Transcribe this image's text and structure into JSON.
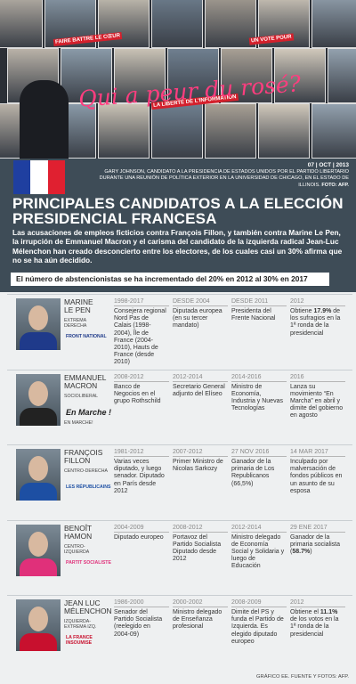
{
  "photo": {
    "graffiti": "Qui a peur du rosé?",
    "posters": [
      "FAIRE BATTRE LE CŒUR",
      "LA LIBERTÉ DE L'INFORMATION",
      "UN VOTE POUR"
    ]
  },
  "caption": {
    "date": "07 | OCT | 2013",
    "text": "GARY JOHNSON, CANDIDATO A LA PRESIDENCIA DE ESTADOS UNIDOS POR EL PARTIDO LIBERTARIO DURANTE UNA REUNIÓN DE POLÍTICA EXTERIOR EN LA UNIVERSIDAD DE CHICAGO, EN EL ESTADO DE ILLINOIS.",
    "credit": "FOTO: AFP."
  },
  "title": "PRINCIPALES CANDIDATOS A LA ELECCIÓN PRESIDENCIAL FRANCESA",
  "intro": "Las acusaciones de empleos ficticios contra François Fillon, y también contra Marine Le Pen, la irrupción de Emmanuel Macron y el carisma del candidato de la izquierda radical Jean-Luc Mélenchon han creado desconcierto entre los electores, de los cuales casi un 30% afirma que no se ha aún decidido.",
  "banner": "El número de abstencionistas se ha incrementado del 20% en 2012 al 30% en 2017",
  "candidates": [
    {
      "names": [
        "MARINE",
        "LE PEN"
      ],
      "party": "EXTREMA DERECHA",
      "logo": "FRONT NATIONAL",
      "color": "#1f3a8a",
      "entries": [
        {
          "date": "1998-2017",
          "text": [
            "Consejera regional Nord Pas de Calais (1998-2004), Île de France (2004-2010), Hauts de France (desde 2010)"
          ]
        },
        {
          "date": "DESDE 2004",
          "text": [
            "Diputada europea (en su tercer mandato)"
          ]
        },
        {
          "date": "DESDE 2011",
          "text": [
            "Presidenta del Frente Nacional"
          ]
        },
        {
          "date": "2012",
          "text": [
            "Obtiene ",
            "17.9%",
            " de los sufragios en la 1ª ronda de la presidencial"
          ]
        }
      ]
    },
    {
      "names": [
        "EMMANUEL",
        "MACRON"
      ],
      "party": "SOCIOLIBERAL",
      "logo": "En Marche !",
      "logo_sub": "EN MARCHE!",
      "color": "#222",
      "entries": [
        {
          "date": "2008-2012",
          "text": [
            "Banco de Negocios en el grupo Rothschild"
          ]
        },
        {
          "date": "2012-2014",
          "text": [
            "Secretario General adjunto del Elíseo"
          ]
        },
        {
          "date": "2014-2016",
          "text": [
            "Ministro de Economía, Industria y Nuevas Tecnologías"
          ]
        },
        {
          "date": "2016",
          "text": [
            "Lanza su movimiento “En Marcha” en abril y dimite del gobierno en agosto"
          ]
        }
      ]
    },
    {
      "names": [
        "FRANÇOIS",
        "FILLON"
      ],
      "party": "CENTRO-DERECHA",
      "logo": "LES RÉPUBLICAINS",
      "color": "#1d4fa3",
      "entries": [
        {
          "date": "1981-2012",
          "text": [
            "Varias veces diputado, y luego senador. Diputado en París desde 2012"
          ]
        },
        {
          "date": "2007-2012",
          "text": [
            "Primer Ministro de Nicolas Sarkozy"
          ]
        },
        {
          "date": "27 NOV 2016",
          "text": [
            "Ganador de la primaria de Los Republicanos (66,5%)"
          ]
        },
        {
          "date": "14 MAR 2017",
          "text": [
            "Inculpado por malversación de fondos públicos en un asunto de su esposa"
          ]
        }
      ]
    },
    {
      "names": [
        "BENOÎT",
        "HAMON"
      ],
      "party": "CENTRO-IZQUIERDA",
      "logo": "PARTIT SOCIALISTE",
      "color": "#e0307a",
      "entries": [
        {
          "date": "2004-2009",
          "text": [
            "Diputado europeo"
          ]
        },
        {
          "date": "2008-2012",
          "text": [
            "Portavoz del Partido Socialista Diputado desde 2012"
          ]
        },
        {
          "date": "2012-2014",
          "text": [
            "Ministro delegado de Economía Social y Solidaria y luego de Educación"
          ]
        },
        {
          "date": "29 ENE 2017",
          "text": [
            "Ganador de la primaria socialista (",
            "58.7%",
            ")"
          ]
        }
      ]
    },
    {
      "names": [
        "JEAN LUC",
        "MÉLENCHON"
      ],
      "party": "IZQUIERDA-EXTREMA IZQ.",
      "logo": "LA FRANCE INSOUMISE",
      "color": "#c8102e",
      "entries": [
        {
          "date": "1986-2000",
          "text": [
            "Senador del Partido Socialista (reelegido en 2004-09)"
          ]
        },
        {
          "date": "2000-2002",
          "text": [
            "Ministro delegado de Enseñanza profesional"
          ]
        },
        {
          "date": "2008-2009",
          "text": [
            "Dimite del PS y funda el Partido de Izquierda. Es elegido diputado europeo"
          ]
        },
        {
          "date": "2012",
          "text": [
            "Obtiene el ",
            "11.1%",
            " de los votos en la 1ª ronda de la presidencial"
          ]
        }
      ]
    }
  ],
  "footer": "GRÁFICO EE. FUENTE Y FOTOS: AFP."
}
